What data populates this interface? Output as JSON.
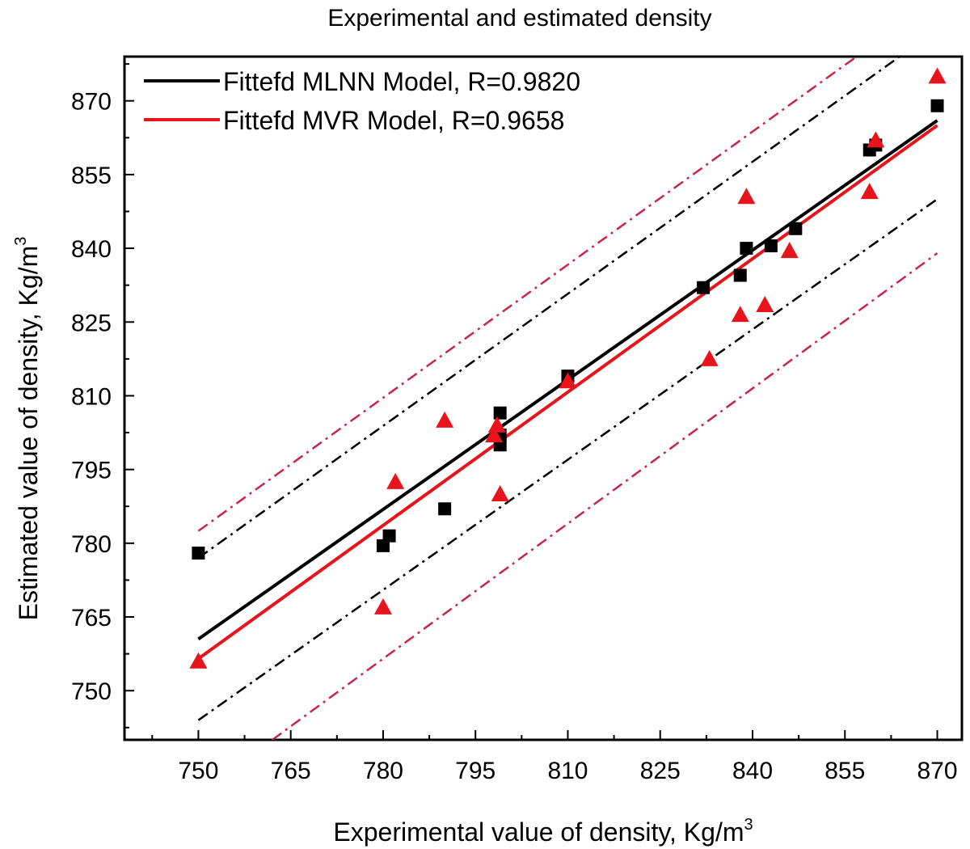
{
  "chart_data": {
    "type": "scatter",
    "title": "Experimental and estimated density",
    "xlabel": "Experimental value of density, Kg/m",
    "xlabel_sup": "3",
    "ylabel": "Estimated value of density, Kg/m",
    "ylabel_sup": "3",
    "xlim": [
      738,
      874
    ],
    "ylim": [
      740,
      879
    ],
    "xticks": [
      750,
      765,
      780,
      795,
      810,
      825,
      840,
      855,
      870
    ],
    "yticks": [
      750,
      765,
      780,
      795,
      810,
      825,
      840,
      855,
      870
    ],
    "xtick_labels": [
      "750",
      "765",
      "780",
      "795",
      "810",
      "825",
      "840",
      "855",
      "870"
    ],
    "ytick_labels": [
      "750",
      "765",
      "780",
      "795",
      "810",
      "825",
      "840",
      "855",
      "870"
    ],
    "grid": false,
    "legend_position": "top-left",
    "legend": [
      {
        "label": "Fittefd MLNN Model, R=0.9820",
        "color": "#000000"
      },
      {
        "label": "Fittefd MVR Model, R=0.9658",
        "color": "#e8141c"
      }
    ],
    "series": [
      {
        "marker": "square",
        "color": "#000000",
        "x": [
          750,
          780,
          781,
          790,
          799,
          799,
          799,
          810,
          832,
          838,
          839,
          843,
          847,
          859,
          860,
          870
        ],
        "y": [
          778,
          779.5,
          781.5,
          787,
          802,
          806.5,
          800,
          814,
          832,
          834.5,
          840,
          840.5,
          844,
          860,
          861,
          869
        ]
      },
      {
        "marker": "triangle",
        "color": "#e8141c",
        "x": [
          750,
          780,
          782,
          790,
          798,
          798.5,
          799,
          810,
          833,
          838,
          839,
          842,
          846,
          859,
          860,
          870
        ],
        "y": [
          756,
          767,
          792.5,
          805,
          802,
          804,
          790,
          813,
          817.5,
          826.5,
          850.5,
          828.5,
          839.5,
          851.5,
          862,
          875
        ]
      }
    ],
    "fit_lines": [
      {
        "color": "#000000",
        "x": [
          750,
          870
        ],
        "y": [
          760.5,
          866
        ]
      },
      {
        "color": "#e8141c",
        "x": [
          750,
          870
        ],
        "y": [
          756.5,
          865
        ]
      }
    ],
    "bound_lines": [
      {
        "color": "#000000",
        "x": [
          750,
          865
        ],
        "y": [
          777,
          880
        ]
      },
      {
        "color": "#000000",
        "x": [
          750,
          870
        ],
        "y": [
          744,
          850
        ]
      },
      {
        "color": "#c8244c",
        "x": [
          750,
          858
        ],
        "y": [
          782.5,
          880
        ]
      },
      {
        "color": "#c8244c",
        "x": [
          762,
          870
        ],
        "y": [
          740,
          839
        ]
      }
    ]
  }
}
